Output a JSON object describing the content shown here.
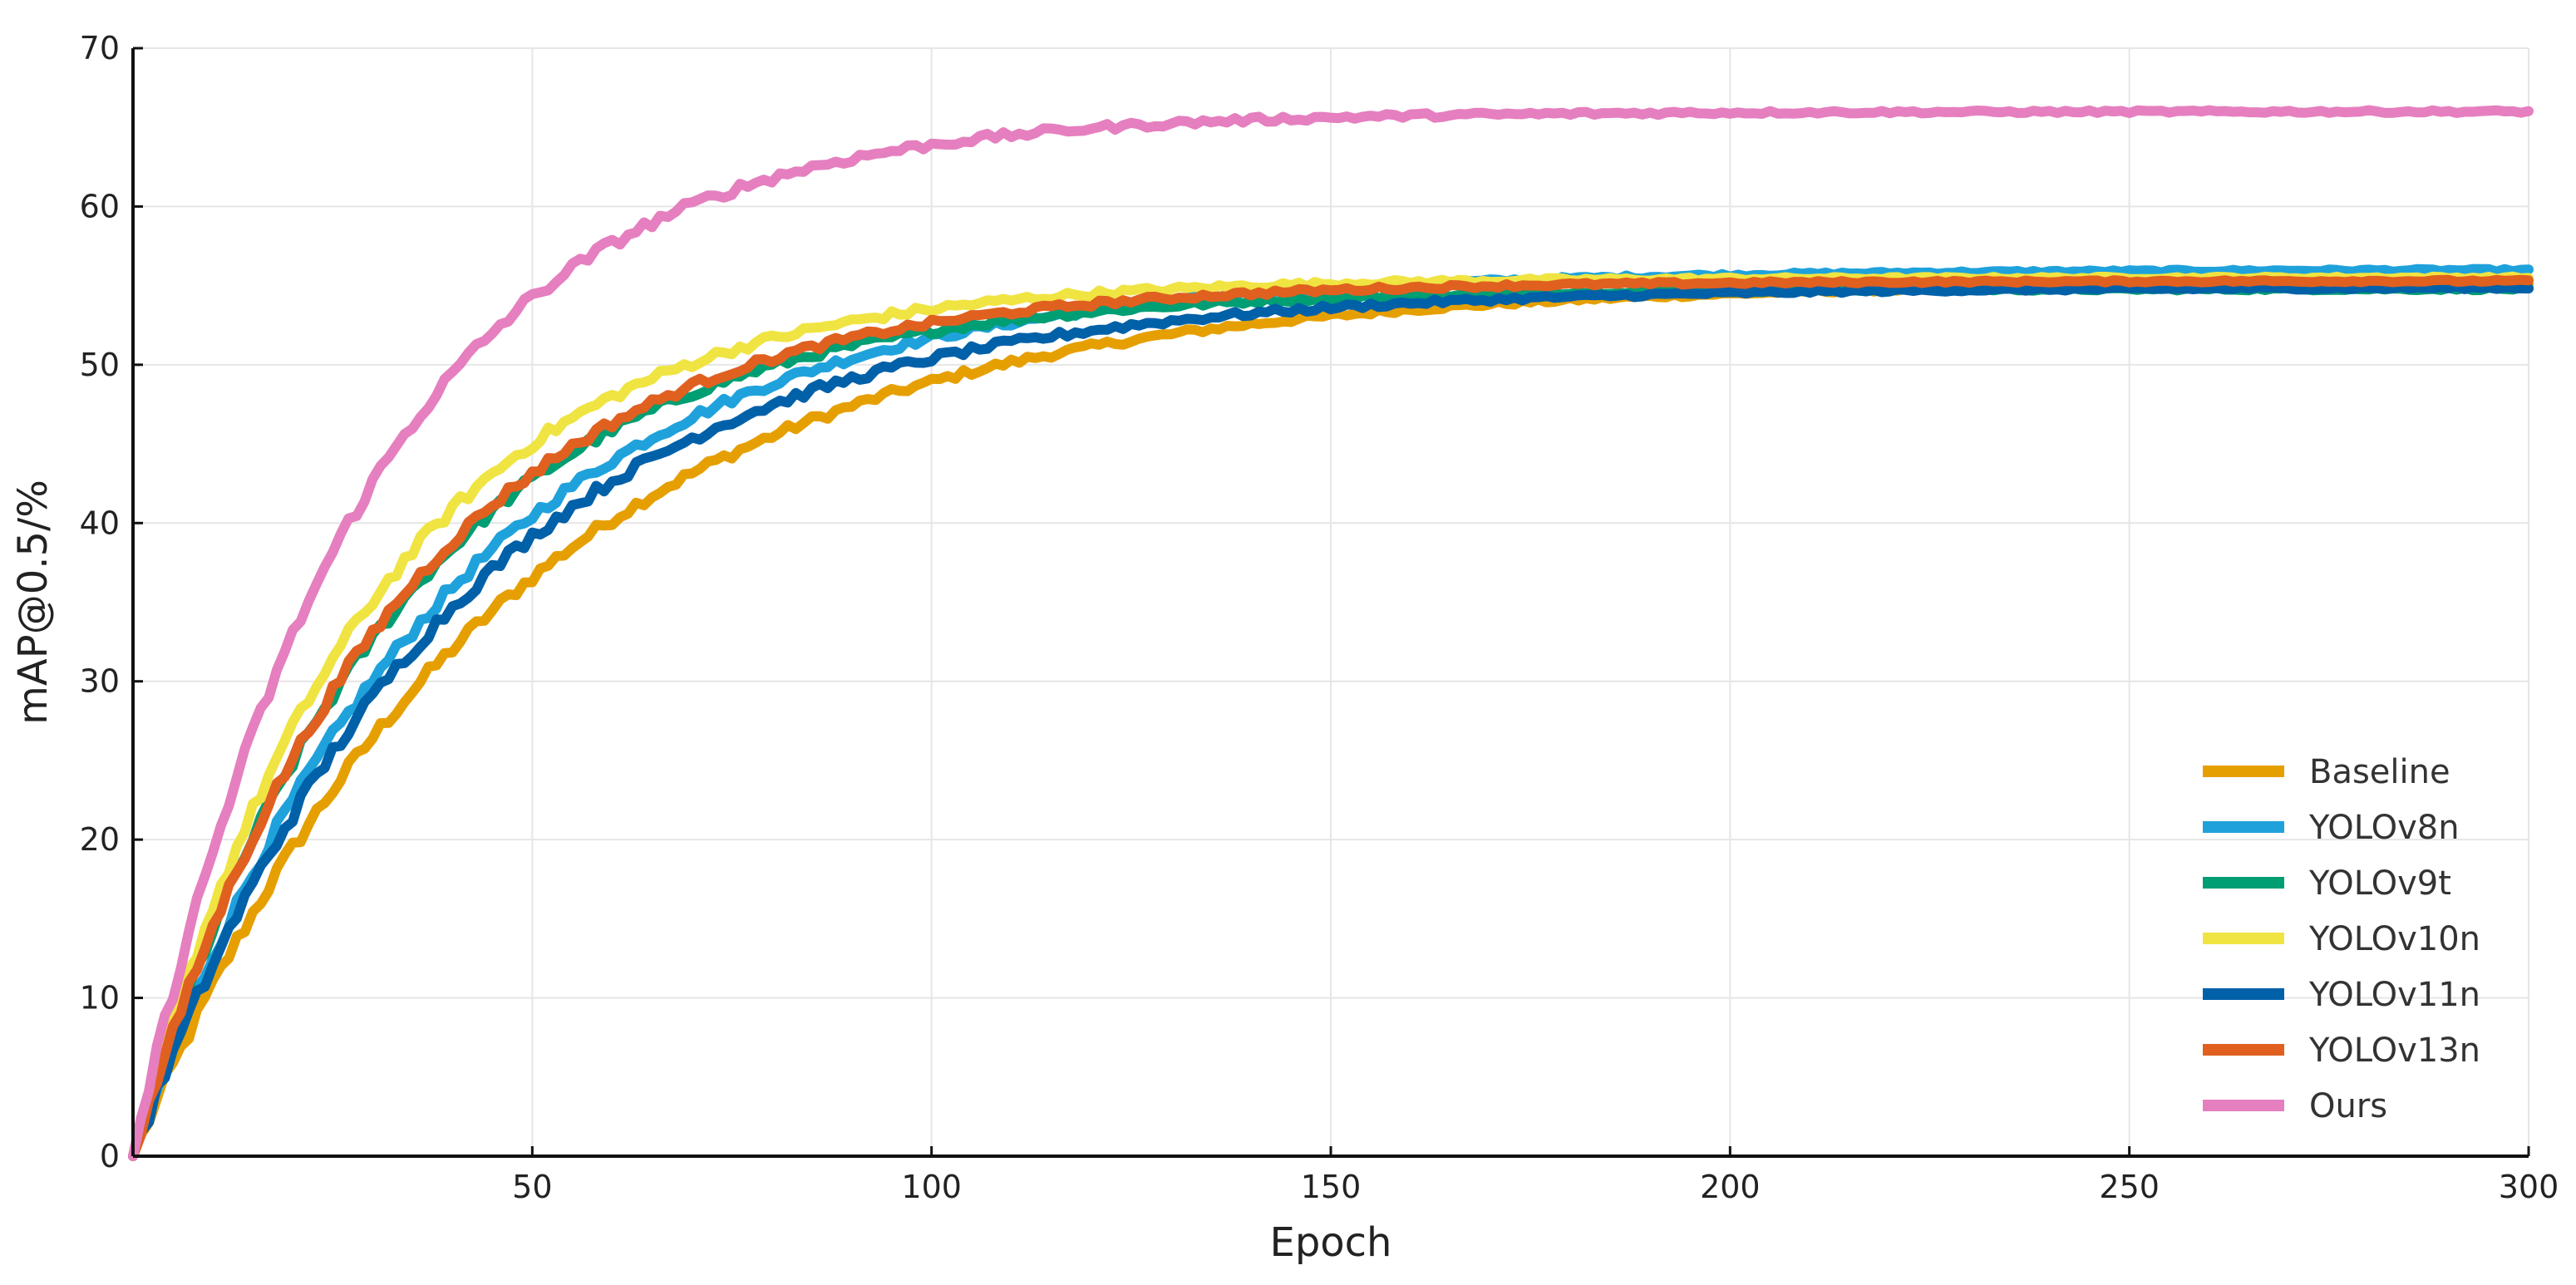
{
  "chart_data": {
    "type": "line",
    "title": "",
    "xlabel": "Epoch",
    "ylabel": "mAP@0.5/%",
    "xlim": [
      0,
      300
    ],
    "ylim": [
      0,
      70
    ],
    "xticks": [
      50,
      100,
      150,
      200,
      250,
      300
    ],
    "yticks": [
      0,
      10,
      20,
      30,
      40,
      50,
      60,
      70
    ],
    "grid": true,
    "legend_position": "bottom-right",
    "series": [
      {
        "name": "Baseline",
        "color": "#E69F00",
        "final": 55.2,
        "tau": 46,
        "noise": 0.6
      },
      {
        "name": "YOLOv8n",
        "color": "#1FA2DC",
        "final": 56.0,
        "tau": 39,
        "noise": 0.55
      },
      {
        "name": "YOLOv9t",
        "color": "#009E73",
        "final": 54.8,
        "tau": 33,
        "noise": 0.55
      },
      {
        "name": "YOLOv10n",
        "color": "#F0E442",
        "final": 55.5,
        "tau": 30,
        "noise": 0.55
      },
      {
        "name": "YOLOv11n",
        "color": "#0060A8",
        "final": 54.9,
        "tau": 40,
        "noise": 0.6
      },
      {
        "name": "YOLOv13n",
        "color": "#E06020",
        "final": 55.3,
        "tau": 33,
        "noise": 0.5
      },
      {
        "name": "Ours",
        "color": "#E57FBF",
        "final": 66.0,
        "tau": 29,
        "noise": 0.6
      }
    ]
  }
}
